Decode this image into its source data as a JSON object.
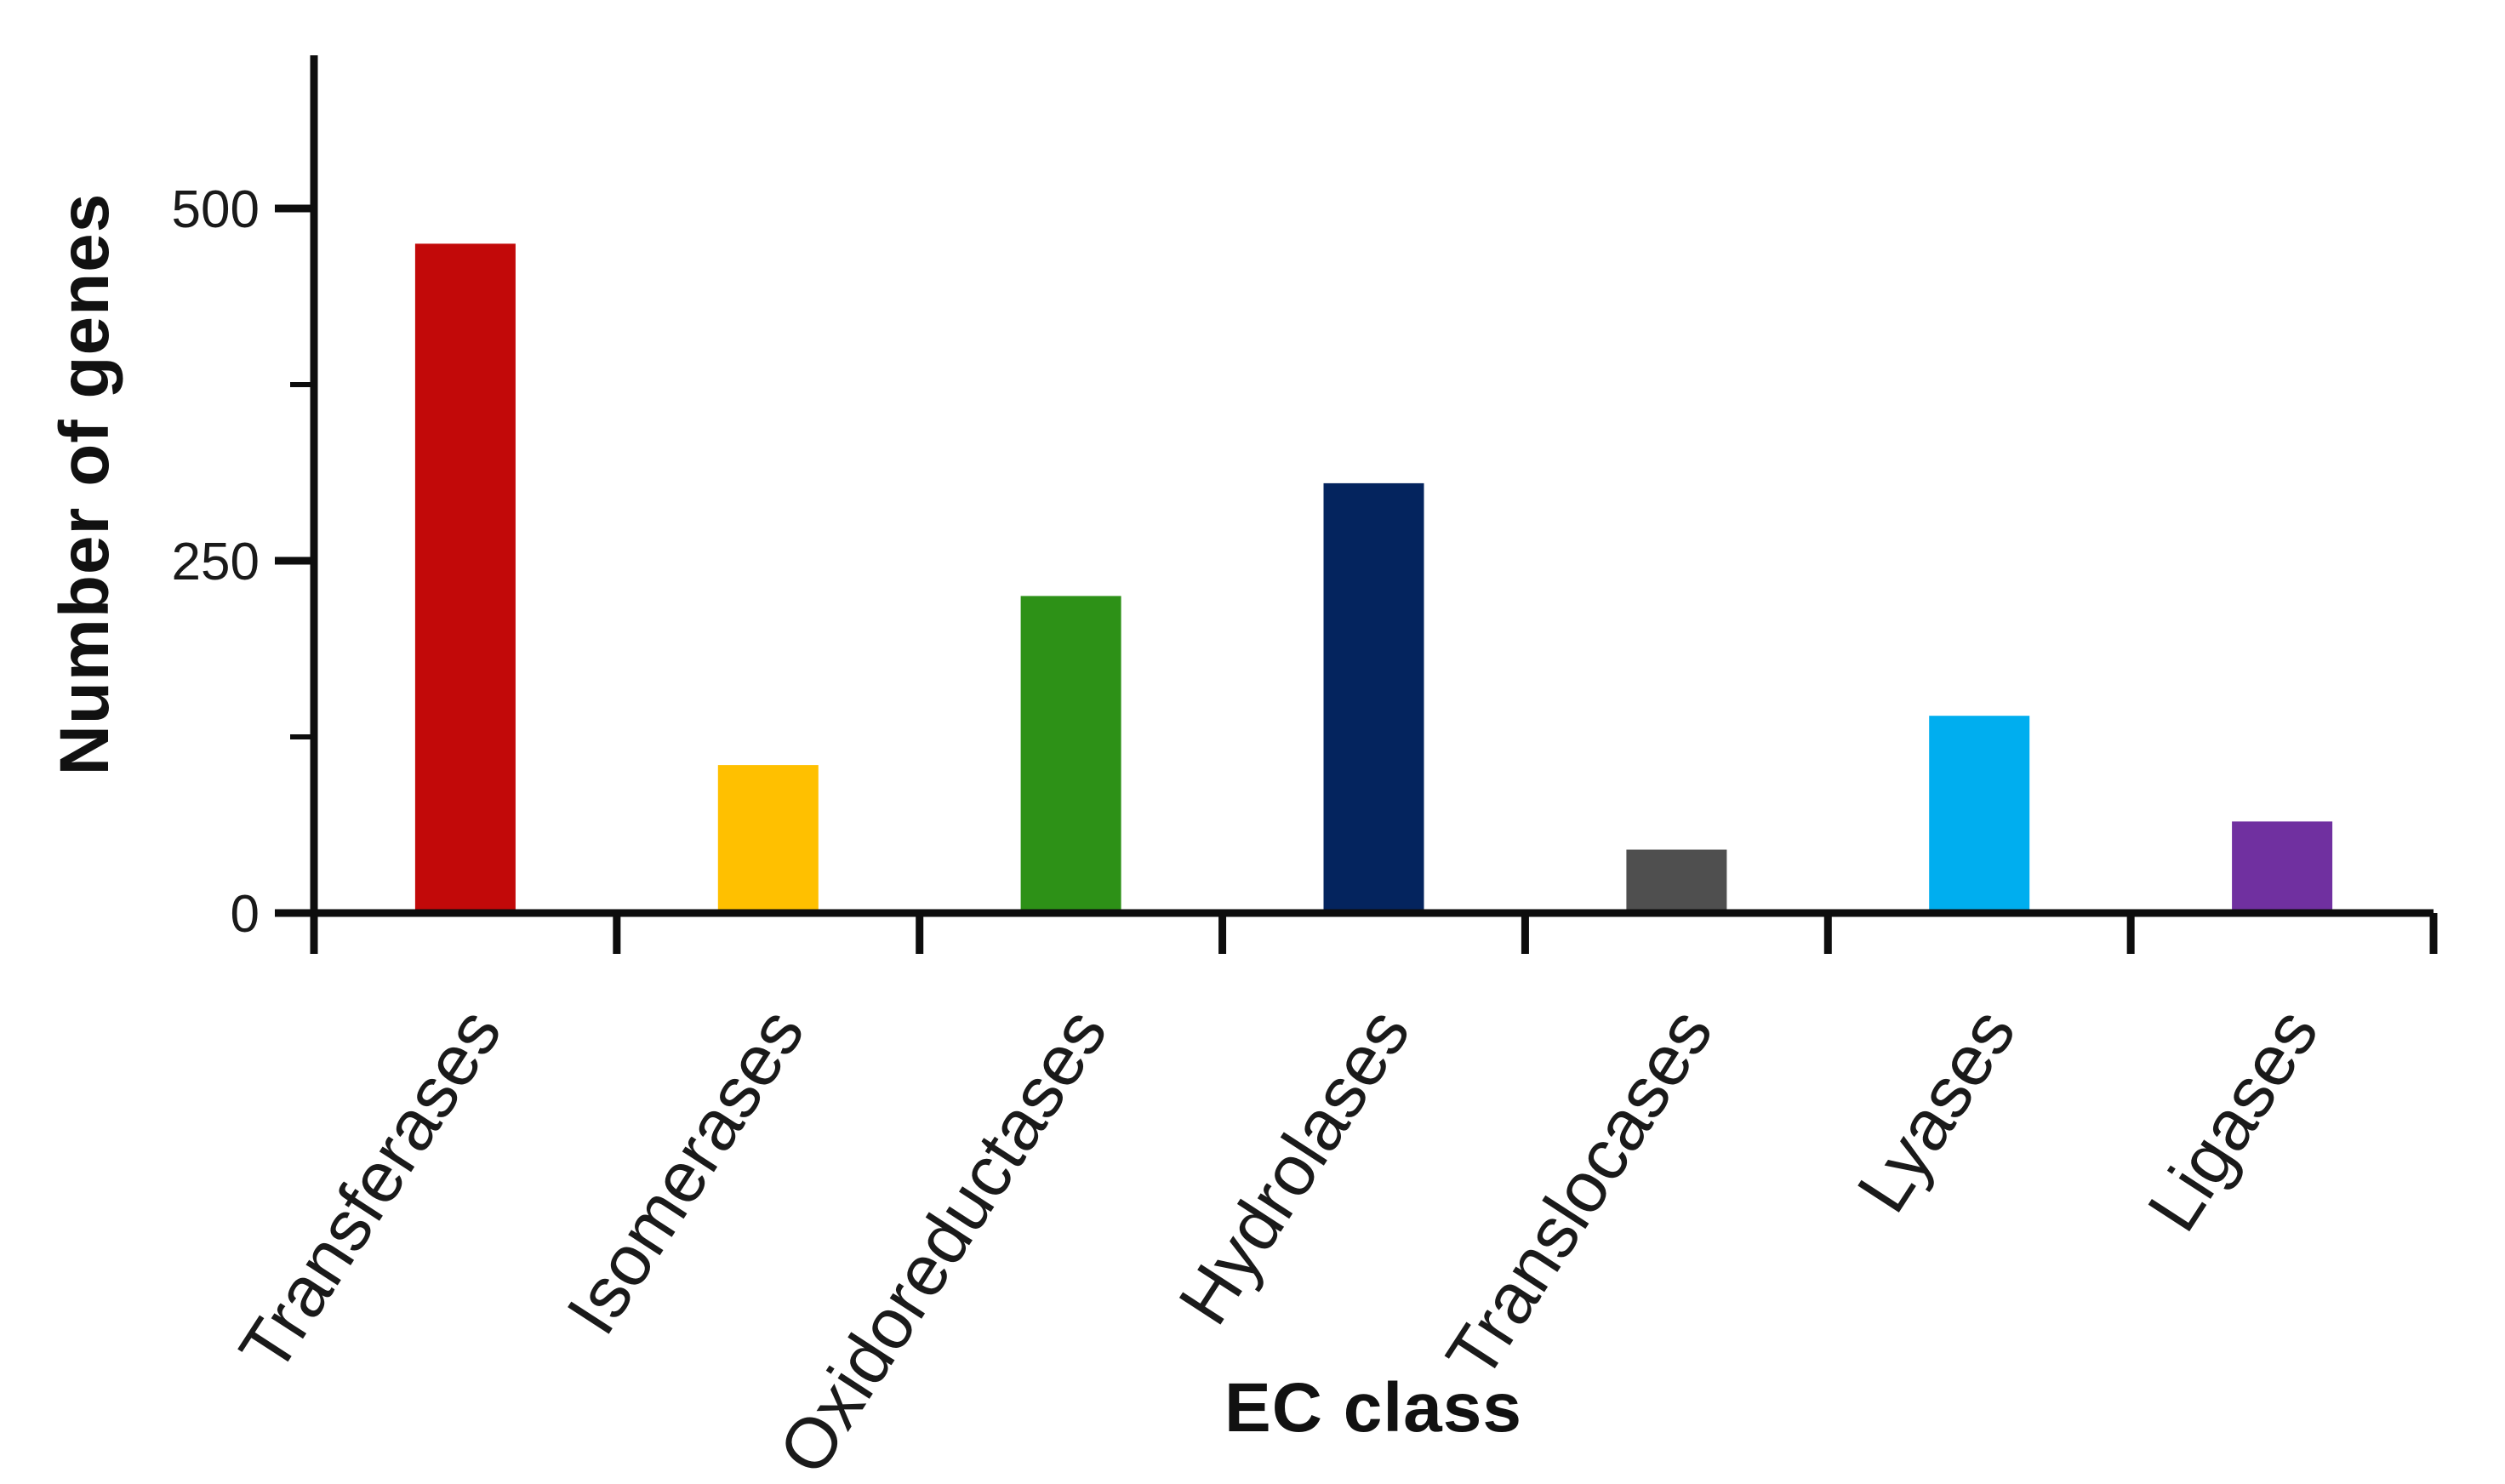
{
  "chart_data": {
    "type": "bar",
    "xlabel": "EC class",
    "ylabel": "Number of genes",
    "categories": [
      "Transferases",
      "Isomerases",
      "Oxidoreductases",
      "Hydrolases",
      "Translocases",
      "Lyases",
      "Ligases"
    ],
    "values": [
      475,
      105,
      225,
      305,
      45,
      140,
      65
    ],
    "bar_colors": [
      "#c20909",
      "#ffc000",
      "#2d9117",
      "#04245e",
      "#4f4f4f",
      "#00aeef",
      "#7030a0"
    ],
    "yticks": [
      0,
      250,
      500
    ],
    "ytick_minor": [
      125,
      375
    ],
    "ylim": [
      0,
      610
    ],
    "xtick_rotation_deg": -57,
    "grid": false,
    "legend": "none",
    "axis_color": "#0d0d0d",
    "text_color": "#1a1a1a",
    "background": "#ffffff"
  }
}
